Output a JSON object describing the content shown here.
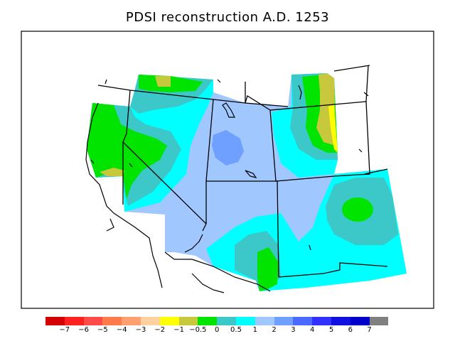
{
  "title": "PDSI reconstruction A.D. 1253",
  "legend": {
    "colors": [
      "#d40000",
      "#ff2020",
      "#ff4a4a",
      "#ff7a4a",
      "#ffa070",
      "#ffd0a0",
      "#ffff00",
      "#c8c83c",
      "#00e400",
      "#3cc8c8",
      "#00ffff",
      "#a0c8ff",
      "#70a0ff",
      "#4a6aff",
      "#3030ff",
      "#1010e0",
      "#0000c8",
      "#808080"
    ],
    "labels": [
      "−7",
      "−6",
      "−5",
      "−4",
      "−3",
      "−2",
      "−1",
      "−0.5",
      "0",
      "0.5",
      "1",
      "2",
      "3",
      "4",
      "5",
      "6",
      "7"
    ]
  },
  "colors": {
    "light_blue": "#a0c8ff",
    "cyan": "#00ffff",
    "teal": "#3cc8c8",
    "green": "#00e400",
    "olive": "#c8c83c",
    "yellow": "#ffff00",
    "mid_blue": "#70a0ff"
  }
}
